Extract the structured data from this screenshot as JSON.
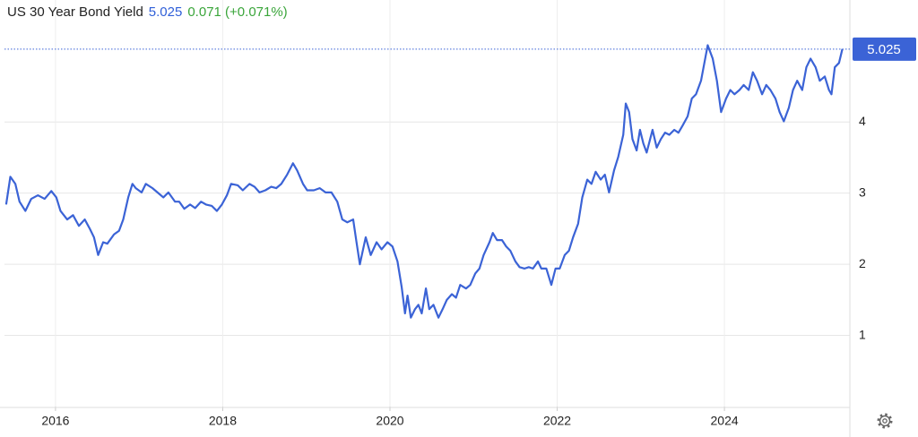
{
  "chart_data": {
    "type": "line",
    "title": "US 30 Year Bond Yield",
    "change_text": "0.071 (+0.071%)",
    "xlim": [
      2015.39,
      2025.5
    ],
    "xticks": [
      2016,
      2018,
      2020,
      2022,
      2024
    ],
    "ylim": [
      0,
      5.35
    ],
    "yticks": [
      1,
      2,
      3,
      4
    ],
    "grid": true,
    "x": [
      2015.41,
      2015.46,
      2015.52,
      2015.57,
      2015.64,
      2015.71,
      2015.79,
      2015.87,
      2015.95,
      2016.01,
      2016.06,
      2016.14,
      2016.21,
      2016.28,
      2016.35,
      2016.41,
      2016.46,
      2016.51,
      2016.57,
      2016.62,
      2016.7,
      2016.76,
      2016.81,
      2016.87,
      2016.92,
      2016.96,
      2017.03,
      2017.08,
      2017.16,
      2017.22,
      2017.29,
      2017.35,
      2017.43,
      2017.48,
      2017.54,
      2017.61,
      2017.67,
      2017.74,
      2017.8,
      2017.87,
      2017.93,
      2017.99,
      2018.05,
      2018.1,
      2018.18,
      2018.24,
      2018.32,
      2018.38,
      2018.44,
      2018.51,
      2018.58,
      2018.64,
      2018.7,
      2018.77,
      2018.84,
      2018.89,
      2018.96,
      2019.01,
      2019.09,
      2019.16,
      2019.23,
      2019.3,
      2019.37,
      2019.43,
      2019.49,
      2019.56,
      2019.6,
      2019.64,
      2019.71,
      2019.77,
      2019.84,
      2019.9,
      2019.97,
      2020.03,
      2020.09,
      2020.14,
      2020.18,
      2020.21,
      2020.25,
      2020.3,
      2020.34,
      2020.38,
      2020.43,
      2020.47,
      2020.52,
      2020.58,
      2020.63,
      2020.68,
      2020.74,
      2020.79,
      2020.84,
      2020.91,
      2020.96,
      2021.02,
      2021.07,
      2021.12,
      2021.19,
      2021.23,
      2021.28,
      2021.34,
      2021.39,
      2021.44,
      2021.5,
      2021.55,
      2021.61,
      2021.66,
      2021.71,
      2021.77,
      2021.81,
      2021.87,
      2021.93,
      2021.98,
      2022.03,
      2022.09,
      2022.14,
      2022.19,
      2022.25,
      2022.3,
      2022.36,
      2022.41,
      2022.46,
      2022.52,
      2022.57,
      2022.62,
      2022.68,
      2022.73,
      2022.79,
      2022.82,
      2022.86,
      2022.9,
      2022.95,
      2022.99,
      2023.03,
      2023.07,
      2023.14,
      2023.19,
      2023.24,
      2023.29,
      2023.34,
      2023.4,
      2023.45,
      2023.5,
      2023.56,
      2023.61,
      2023.66,
      2023.72,
      2023.76,
      2023.8,
      2023.86,
      2023.91,
      2023.96,
      2024.02,
      2024.07,
      2024.12,
      2024.18,
      2024.23,
      2024.29,
      2024.34,
      2024.39,
      2024.45,
      2024.5,
      2024.55,
      2024.61,
      2024.66,
      2024.71,
      2024.77,
      2024.82,
      2024.87,
      2024.93,
      2024.98,
      2025.03,
      2025.09,
      2025.14,
      2025.2,
      2025.25,
      2025.28,
      2025.32,
      2025.37,
      2025.41
    ],
    "series": [
      {
        "color": "#3b63d6",
        "values": [
          2.84,
          3.23,
          3.13,
          2.88,
          2.75,
          2.92,
          2.97,
          2.92,
          3.03,
          2.94,
          2.75,
          2.63,
          2.69,
          2.54,
          2.63,
          2.5,
          2.38,
          2.13,
          2.31,
          2.29,
          2.42,
          2.47,
          2.63,
          2.94,
          3.13,
          3.07,
          3.01,
          3.13,
          3.07,
          3.01,
          2.94,
          3.01,
          2.88,
          2.88,
          2.78,
          2.84,
          2.79,
          2.88,
          2.84,
          2.82,
          2.75,
          2.84,
          2.97,
          3.13,
          3.11,
          3.04,
          3.13,
          3.09,
          3.01,
          3.04,
          3.09,
          3.07,
          3.13,
          3.26,
          3.42,
          3.32,
          3.13,
          3.04,
          3.04,
          3.07,
          3.01,
          3.01,
          2.88,
          2.63,
          2.59,
          2.63,
          2.31,
          2.0,
          2.38,
          2.13,
          2.31,
          2.21,
          2.31,
          2.25,
          2.04,
          1.68,
          1.31,
          1.56,
          1.25,
          1.37,
          1.43,
          1.31,
          1.66,
          1.37,
          1.43,
          1.25,
          1.37,
          1.5,
          1.58,
          1.53,
          1.71,
          1.66,
          1.71,
          1.87,
          1.94,
          2.13,
          2.31,
          2.44,
          2.34,
          2.34,
          2.25,
          2.19,
          2.04,
          1.96,
          1.94,
          1.96,
          1.94,
          2.04,
          1.94,
          1.94,
          1.71,
          1.94,
          1.94,
          2.13,
          2.19,
          2.38,
          2.57,
          2.94,
          3.19,
          3.13,
          3.3,
          3.19,
          3.26,
          3.01,
          3.32,
          3.51,
          3.82,
          4.26,
          4.14,
          3.76,
          3.6,
          3.89,
          3.7,
          3.57,
          3.89,
          3.64,
          3.76,
          3.85,
          3.82,
          3.89,
          3.85,
          3.95,
          4.08,
          4.33,
          4.39,
          4.58,
          4.83,
          5.08,
          4.89,
          4.58,
          4.14,
          4.33,
          4.45,
          4.39,
          4.45,
          4.52,
          4.45,
          4.7,
          4.58,
          4.39,
          4.52,
          4.45,
          4.33,
          4.14,
          4.01,
          4.2,
          4.45,
          4.58,
          4.45,
          4.77,
          4.89,
          4.77,
          4.58,
          4.64,
          4.45,
          4.39,
          4.77,
          4.83,
          5.025
        ]
      }
    ]
  }
}
